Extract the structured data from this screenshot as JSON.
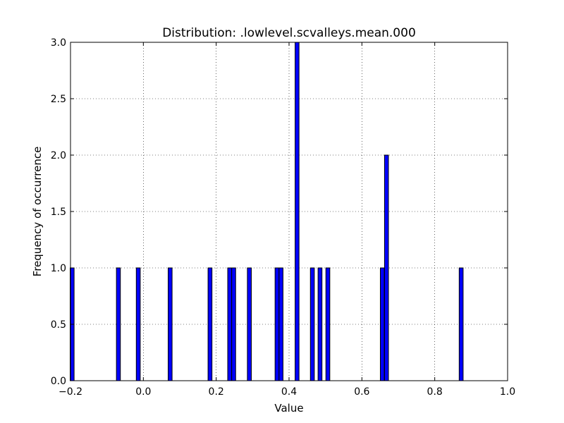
{
  "chart_data": {
    "type": "bar",
    "title": "Distribution: .lowlevel.scvalleys.mean.000",
    "xlabel": "Value",
    "ylabel": "Frequency of occurrence",
    "xlim": [
      -0.2,
      1.0
    ],
    "ylim": [
      0.0,
      3.0
    ],
    "xticks": [
      "−0.2",
      "0.0",
      "0.2",
      "0.4",
      "0.6",
      "0.8",
      "1.0"
    ],
    "xtick_values": [
      -0.2,
      0.0,
      0.2,
      0.4,
      0.6,
      0.8,
      1.0
    ],
    "yticks": [
      "0.0",
      "0.5",
      "1.0",
      "1.5",
      "2.0",
      "2.5",
      "3.0"
    ],
    "ytick_values": [
      0.0,
      0.5,
      1.0,
      1.5,
      2.0,
      2.5,
      3.0
    ],
    "grid": true,
    "bar_color": "#0000ff",
    "bin_width": 0.0108,
    "bins": [
      {
        "x": -0.1955,
        "value": 1
      },
      {
        "x": -0.0685,
        "value": 1
      },
      {
        "x": -0.014,
        "value": 1
      },
      {
        "x": 0.0735,
        "value": 1
      },
      {
        "x": 0.183,
        "value": 1
      },
      {
        "x": 0.237,
        "value": 1
      },
      {
        "x": 0.248,
        "value": 1
      },
      {
        "x": 0.291,
        "value": 1
      },
      {
        "x": 0.367,
        "value": 1
      },
      {
        "x": 0.378,
        "value": 1
      },
      {
        "x": 0.422,
        "value": 3
      },
      {
        "x": 0.464,
        "value": 1
      },
      {
        "x": 0.485,
        "value": 1
      },
      {
        "x": 0.5065,
        "value": 1
      },
      {
        "x": 0.656,
        "value": 1
      },
      {
        "x": 0.6675,
        "value": 2
      },
      {
        "x": 0.8725,
        "value": 1
      }
    ]
  }
}
